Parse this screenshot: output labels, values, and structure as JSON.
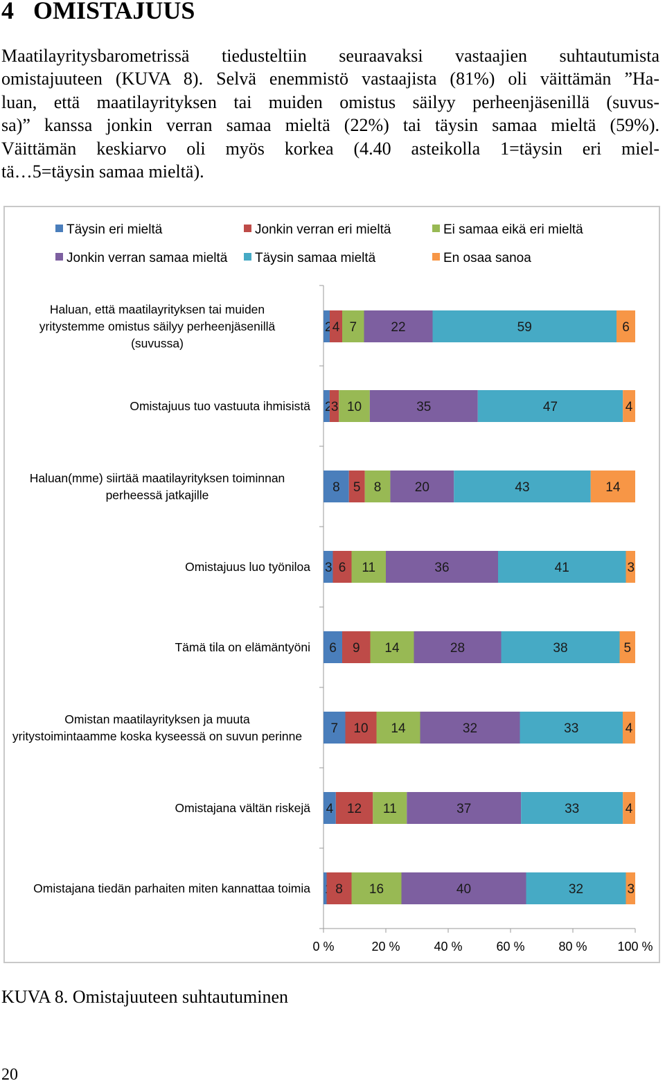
{
  "heading": {
    "number": "4",
    "title": "OMISTAJUUS"
  },
  "paragraph_lines": [
    "Maatilayritysbarometrissä tiedusteltiin seuraavaksi vastaajien suhtautumista",
    "omistajuuteen (KUVA 8). Selvä enemmistö vastaajista (81%) oli väittämän ”Ha-",
    "luan, että maatilayrityksen tai muiden omistus säilyy perheenjäsenillä (suvus-",
    "sa)” kanssa jonkin verran samaa mieltä (22%) tai täysin samaa mieltä (59%).",
    "Väittämän keskiarvo oli myös korkea (4.40 asteikolla 1=täysin eri miel-",
    "tä…5=täysin samaa mieltä)."
  ],
  "chart_data": {
    "type": "bar",
    "orientation": "horizontal",
    "stacked": "percent",
    "legend_position": "top",
    "xlim": [
      0,
      100
    ],
    "xticks": [
      "0 %",
      "20 %",
      "40 %",
      "60 %",
      "80 %",
      "100 %"
    ],
    "series": [
      {
        "name": "Täysin eri mieltä",
        "color": "#4a7ebb",
        "values": [
          2,
          2,
          8,
          3,
          6,
          7,
          4,
          1
        ]
      },
      {
        "name": "Jonkin verran eri mieltä",
        "color": "#be4b48",
        "values": [
          4,
          3,
          5,
          6,
          9,
          10,
          12,
          8
        ]
      },
      {
        "name": "Ei samaa eikä eri mieltä",
        "color": "#98b954",
        "values": [
          7,
          10,
          8,
          11,
          14,
          14,
          11,
          16
        ]
      },
      {
        "name": "Jonkin verran samaa mieltä",
        "color": "#7d5fa0",
        "values": [
          22,
          35,
          20,
          36,
          28,
          32,
          37,
          40
        ]
      },
      {
        "name": "Täysin samaa mieltä",
        "color": "#46aac5",
        "values": [
          59,
          47,
          43,
          41,
          38,
          33,
          33,
          32
        ]
      },
      {
        "name": "En osaa sanoa",
        "color": "#f79646",
        "values": [
          6,
          4,
          14,
          3,
          5,
          4,
          4,
          3
        ]
      }
    ],
    "value_labels": [
      [
        "2",
        "4",
        "7",
        "22",
        "59",
        "6"
      ],
      [
        "2",
        "3",
        "10",
        "35",
        "47",
        "4"
      ],
      [
        "8",
        "5",
        "8",
        "20",
        "43",
        "14"
      ],
      [
        "3",
        "6",
        "11",
        "36",
        "41",
        "3"
      ],
      [
        "6",
        "9",
        "14",
        "28",
        "38",
        "5"
      ],
      [
        "7",
        "10",
        "14",
        "32",
        "33",
        "4"
      ],
      [
        "4",
        "12",
        "11",
        "37",
        "33",
        "4"
      ],
      [
        "1",
        "8",
        "16",
        "40",
        "32",
        "3"
      ]
    ],
    "categories": [
      [
        "Haluan, että maatilayrityksen tai muiden",
        "yritystemme omistus säilyy perheenjäsenillä",
        "(suvussa)"
      ],
      [
        "Omistajuus tuo vastuuta ihmisistä"
      ],
      [
        "Haluan(mme) siirtää maatilayrityksen toiminnan",
        "perheessä jatkajille"
      ],
      [
        "Omistajuus luo työniloa"
      ],
      [
        "Tämä tila on elämäntyöni"
      ],
      [
        "Omistan maatilayrityksen ja muuta",
        "yritystoimintaamme koska kyseessä on suvun perinne"
      ],
      [
        "Omistajana vältän riskejä"
      ],
      [
        "Omistajana tiedän parhaiten miten kannattaa toimia"
      ]
    ]
  },
  "caption": "KUVA 8. Omistajuuteen suhtautuminen",
  "page_number": "20"
}
